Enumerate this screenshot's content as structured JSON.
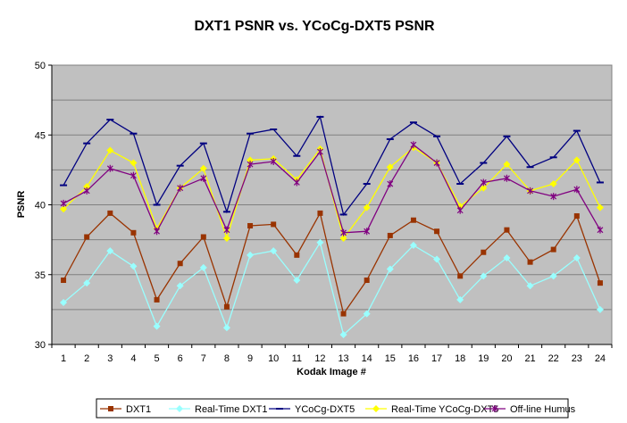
{
  "chart_data": {
    "type": "line",
    "title": "DXT1 PSNR vs. YCoCg-DXT5 PSNR",
    "xlabel": "Kodak Image #",
    "ylabel": "PSNR",
    "ylim": [
      30,
      50
    ],
    "yticks": [
      30,
      35,
      40,
      45,
      50
    ],
    "grid": true,
    "legend_position": "bottom",
    "categories": [
      "1",
      "2",
      "3",
      "4",
      "5",
      "6",
      "7",
      "8",
      "9",
      "10",
      "11",
      "12",
      "13",
      "14",
      "15",
      "16",
      "17",
      "18",
      "19",
      "20",
      "21",
      "22",
      "23",
      "24"
    ],
    "series": [
      {
        "name": "DXT1",
        "color": "#993300",
        "marker": "square",
        "values": [
          34.6,
          37.7,
          39.4,
          38.0,
          33.2,
          35.8,
          37.7,
          32.7,
          38.5,
          38.6,
          36.4,
          39.4,
          32.2,
          34.6,
          37.8,
          38.9,
          38.1,
          34.9,
          36.6,
          38.2,
          35.9,
          36.8,
          39.2,
          34.4
        ]
      },
      {
        "name": "Real-Time DXT1",
        "color": "#99ffff",
        "marker": "diamond",
        "values": [
          33.0,
          34.4,
          36.7,
          35.6,
          31.3,
          34.2,
          35.5,
          31.2,
          36.4,
          36.7,
          34.6,
          37.3,
          30.7,
          32.2,
          35.4,
          37.1,
          36.1,
          33.2,
          34.9,
          36.2,
          34.2,
          34.9,
          36.2,
          32.5
        ]
      },
      {
        "name": "YCoCg-DXT5",
        "color": "#000080",
        "marker": "dash",
        "values": [
          41.4,
          44.4,
          46.1,
          45.1,
          40.0,
          42.8,
          44.4,
          39.5,
          45.1,
          45.4,
          43.5,
          46.3,
          39.3,
          41.5,
          44.7,
          45.9,
          44.9,
          41.5,
          43.0,
          44.9,
          42.7,
          43.4,
          45.3,
          41.6
        ]
      },
      {
        "name": "Real-Time YCoCg-DXT5",
        "color": "#ffff00",
        "marker": "diamond",
        "values": [
          39.7,
          41.3,
          43.9,
          43.0,
          38.3,
          41.2,
          42.6,
          37.6,
          43.2,
          43.3,
          41.8,
          44.0,
          37.6,
          39.8,
          42.7,
          44.1,
          43.0,
          39.9,
          41.2,
          42.9,
          41.0,
          41.5,
          43.2,
          39.8
        ]
      },
      {
        "name": "Off-line Humus",
        "color": "#800080",
        "marker": "star",
        "values": [
          40.1,
          41.0,
          42.6,
          42.1,
          38.1,
          41.2,
          41.9,
          38.2,
          42.9,
          43.1,
          41.6,
          43.8,
          38.0,
          38.1,
          41.5,
          44.3,
          43.0,
          39.6,
          41.6,
          41.9,
          41.0,
          40.6,
          41.1,
          38.2
        ]
      }
    ]
  }
}
